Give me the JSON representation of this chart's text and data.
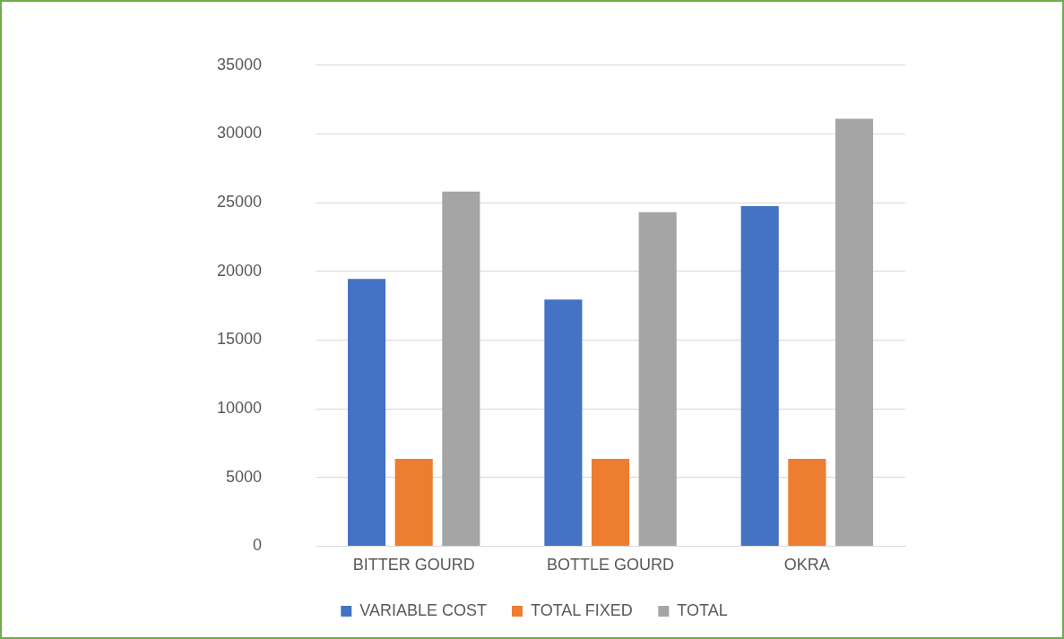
{
  "chart_data": {
    "type": "bar",
    "categories": [
      "BITTER GOURD",
      "BOTTLE GOURD",
      "OKRA"
    ],
    "series": [
      {
        "name": "VARIABLE COST",
        "color": "#4472c4",
        "values": [
          19450,
          17950,
          24750
        ]
      },
      {
        "name": "TOTAL FIXED",
        "color": "#ed7d31",
        "values": [
          6350,
          6350,
          6350
        ]
      },
      {
        "name": "TOTAL",
        "color": "#a5a5a5",
        "values": [
          25800,
          24300,
          31100
        ]
      }
    ],
    "ylim": [
      0,
      35000
    ],
    "yticks": [
      0,
      5000,
      10000,
      15000,
      20000,
      25000,
      30000,
      35000
    ],
    "grid": "y",
    "legend": "bottom"
  }
}
